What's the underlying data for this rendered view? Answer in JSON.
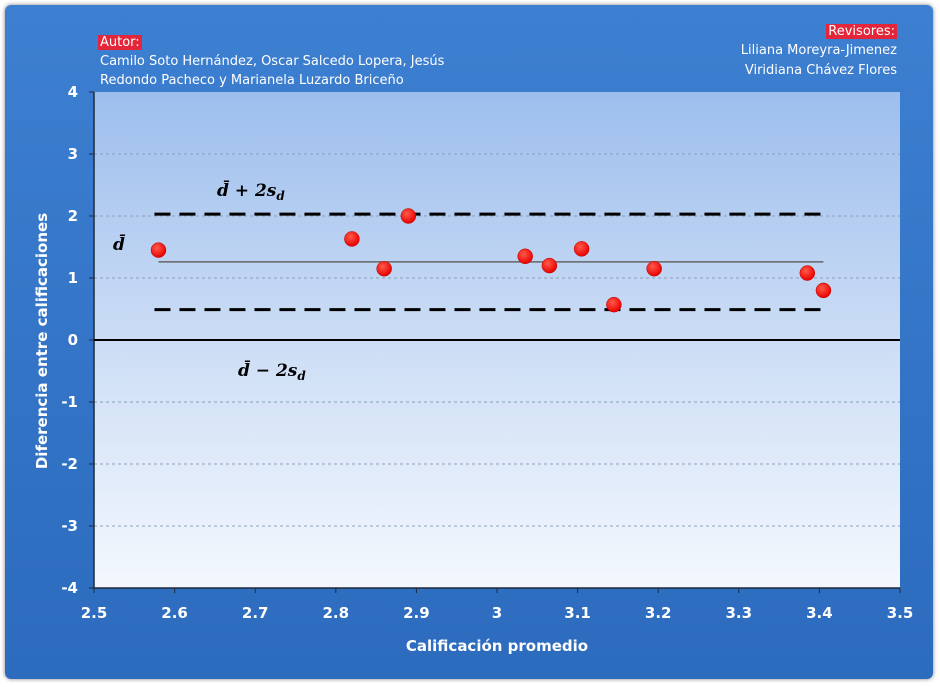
{
  "credits": {
    "author_heading": "Autor:",
    "author_line1": "Camilo Soto Hernández, Oscar Salcedo Lopera, Jesús",
    "author_line2": "Redondo Pacheco y Marianela Luzardo Briceño",
    "reviewer_heading": "Revisores:",
    "reviewer_line1": "Liliana Moreyra-Jimenez",
    "reviewer_line2": "Viridiana Chávez Flores"
  },
  "annotations": {
    "mean_label": "d̄",
    "upper_label": "d̄ + 2s",
    "upper_sub": "d",
    "lower_label": "d̄ − 2s",
    "lower_sub": "d"
  },
  "chart_data": {
    "type": "scatter",
    "title": "",
    "xlabel": "Calificación promedio",
    "ylabel": "Diferencia entre calificaciones",
    "xlim": [
      2.5,
      3.5
    ],
    "ylim": [
      -4,
      4
    ],
    "xticks": [
      2.5,
      2.6,
      2.7,
      2.8,
      2.9,
      3,
      3.1,
      3.2,
      3.3,
      3.4,
      3.5
    ],
    "yticks": [
      -4,
      -3,
      -2,
      -1,
      0,
      1,
      2,
      3,
      4
    ],
    "grid": "horizontal dashed",
    "points": {
      "x": [
        2.58,
        2.82,
        2.86,
        2.89,
        3.035,
        3.065,
        3.105,
        3.145,
        3.195,
        3.385,
        3.405
      ],
      "y": [
        1.45,
        1.63,
        1.15,
        2.0,
        1.35,
        1.2,
        1.47,
        0.57,
        1.15,
        1.08,
        0.8
      ]
    },
    "reference_lines": [
      {
        "kind": "mean",
        "y": 1.26,
        "x_range": [
          2.58,
          3.405
        ],
        "style": "solid"
      },
      {
        "kind": "upper",
        "y": 2.03,
        "x_range": [
          2.575,
          3.405
        ],
        "style": "dashed"
      },
      {
        "kind": "lower",
        "y": 0.49,
        "x_range": [
          2.575,
          3.405
        ],
        "style": "dashed"
      }
    ],
    "colors": {
      "points": "#ff0000",
      "frame": "#3576c8",
      "header_highlight": "#e3263a"
    }
  }
}
